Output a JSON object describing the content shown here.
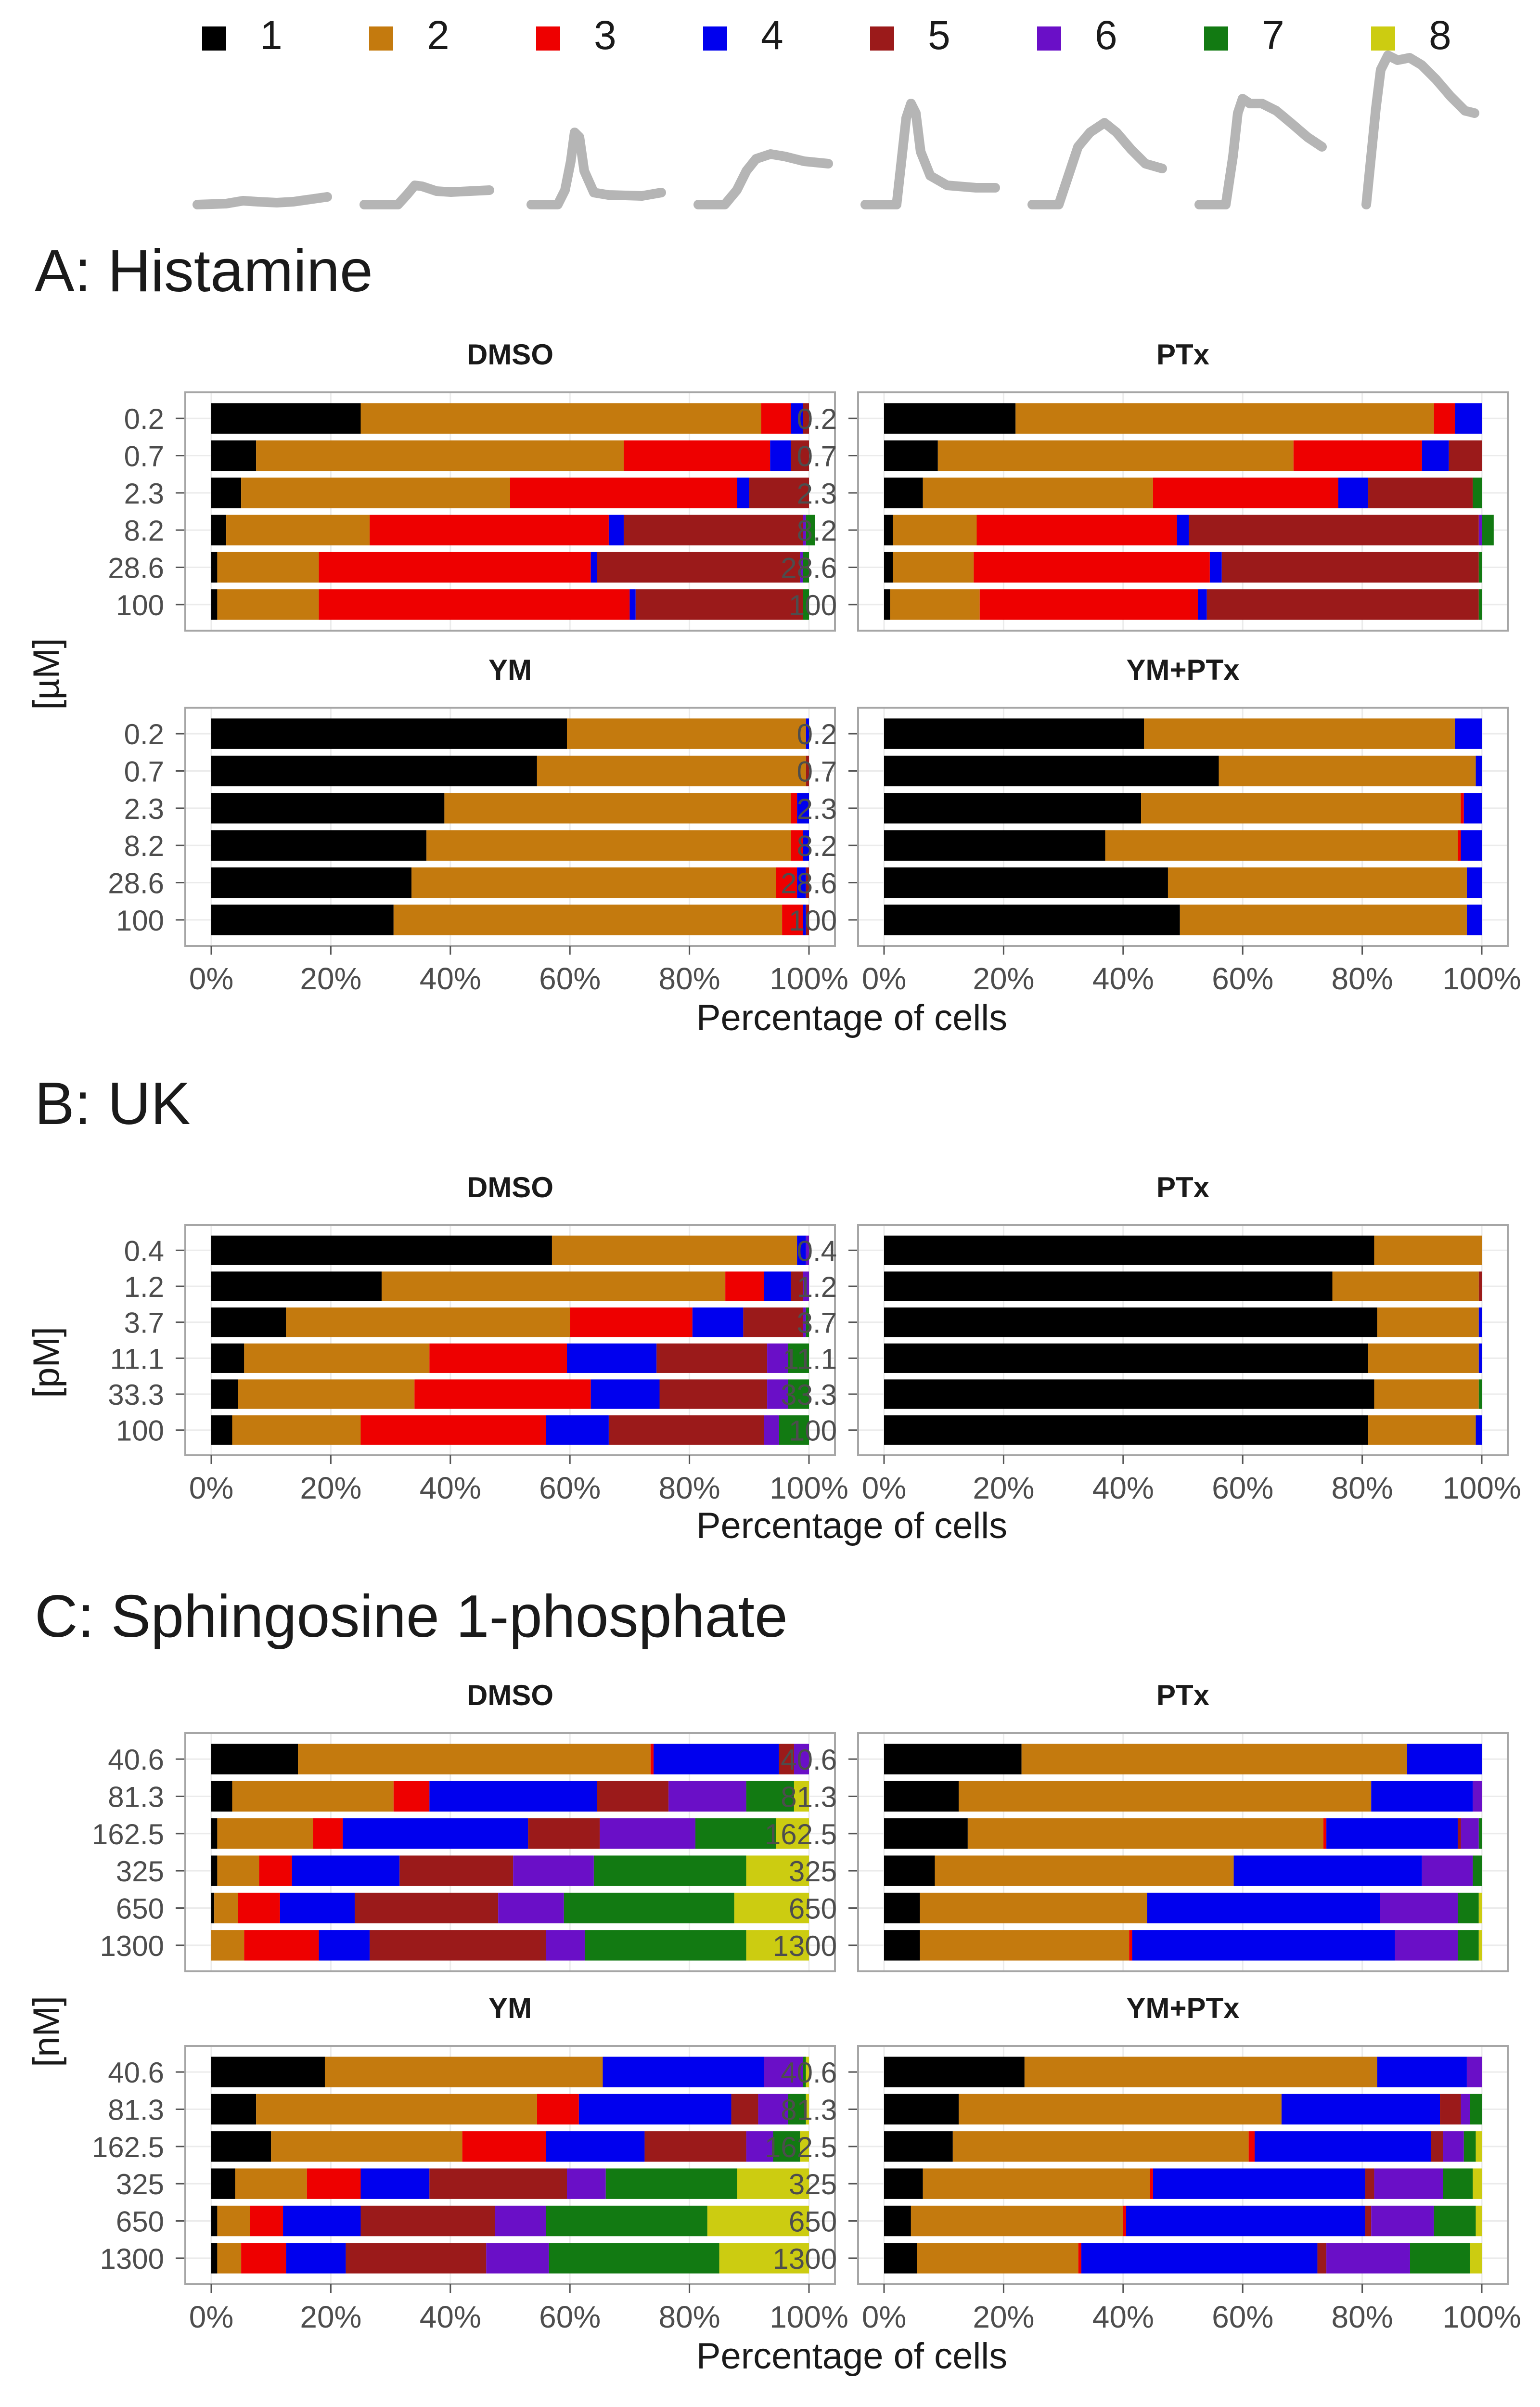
{
  "legend": {
    "items": [
      "1",
      "2",
      "3",
      "4",
      "5",
      "6",
      "7",
      "8"
    ],
    "colors": [
      "#000000",
      "#C47A0E",
      "#EE0000",
      "#0000EE",
      "#9B1A1A",
      "#6A0FC7",
      "#127A12",
      "#CCCC11"
    ],
    "trace_color": "#b5b5b5"
  },
  "panels": [
    {
      "label": "A:  Histamine",
      "ylabel": "[µM]",
      "xlabel": "Percentage of cells"
    },
    {
      "label": "B:  UK",
      "ylabel": "[pM]",
      "xlabel": "Percentage of cells"
    },
    {
      "label": "C:  Sphingosine 1-phosphate",
      "ylabel": "[nM]",
      "xlabel": "Percentage of cells"
    }
  ],
  "x_ticks": [
    "0%",
    "20%",
    "40%",
    "60%",
    "80%",
    "100%"
  ],
  "chart_data": [
    {
      "type": "bar",
      "orientation": "horizontal",
      "stacked": true,
      "panel": "A: Histamine",
      "facet": "DMSO",
      "categories": [
        "0.2",
        "0.7",
        "2.3",
        "8.2",
        "28.6",
        "100"
      ],
      "xlim": [
        0,
        100
      ],
      "series_names": [
        "1",
        "2",
        "3",
        "4",
        "5",
        "6",
        "7",
        "8"
      ],
      "values": [
        [
          25,
          67,
          5,
          2,
          1,
          0,
          0,
          0
        ],
        [
          7.5,
          61.5,
          24.5,
          3.5,
          3,
          0,
          0,
          0
        ],
        [
          5,
          45,
          38,
          2,
          10,
          0,
          0,
          0
        ],
        [
          2.5,
          24,
          40,
          2.5,
          30,
          0.5,
          1.5,
          0
        ],
        [
          1,
          17,
          45.5,
          1,
          34,
          0.5,
          1,
          0
        ],
        [
          1,
          17,
          52,
          1,
          28,
          0,
          1,
          0
        ]
      ]
    },
    {
      "type": "bar",
      "orientation": "horizontal",
      "stacked": true,
      "panel": "A: Histamine",
      "facet": "PTx",
      "categories": [
        "0.2",
        "0.7",
        "2.3",
        "8.2",
        "28.6",
        "100"
      ],
      "xlim": [
        0,
        100
      ],
      "series_names": [
        "1",
        "2",
        "3",
        "4",
        "5",
        "6",
        "7",
        "8"
      ],
      "values": [
        [
          22,
          70,
          3.5,
          4.5,
          0,
          0,
          0,
          0
        ],
        [
          9,
          59.5,
          21.5,
          4.5,
          5.5,
          0,
          0,
          0
        ],
        [
          6.5,
          38.5,
          31,
          5,
          17.5,
          0,
          1.5,
          0
        ],
        [
          1.5,
          14,
          33.5,
          2,
          48.5,
          0.5,
          2,
          0
        ],
        [
          1.5,
          13.5,
          39.5,
          2,
          43,
          0,
          0.5,
          0
        ],
        [
          1,
          15,
          36.5,
          1.5,
          45.5,
          0,
          0.5,
          0
        ]
      ]
    },
    {
      "type": "bar",
      "orientation": "horizontal",
      "stacked": true,
      "panel": "A: Histamine",
      "facet": "YM",
      "categories": [
        "0.2",
        "0.7",
        "2.3",
        "8.2",
        "28.6",
        "100"
      ],
      "xlim": [
        0,
        100
      ],
      "series_names": [
        "1",
        "2",
        "3",
        "4",
        "5",
        "6",
        "7",
        "8"
      ],
      "values": [
        [
          59.5,
          40,
          0,
          0.5,
          0,
          0,
          0,
          0
        ],
        [
          54.5,
          45,
          0,
          0,
          0.5,
          0,
          0,
          0
        ],
        [
          39,
          58,
          1,
          2,
          0,
          0,
          0,
          0
        ],
        [
          36,
          61,
          2,
          1,
          0,
          0,
          0,
          0
        ],
        [
          33.5,
          61,
          3.5,
          1.5,
          0.5,
          0,
          0,
          0
        ],
        [
          30.5,
          65,
          3.5,
          0.5,
          0.5,
          0,
          0,
          0
        ]
      ]
    },
    {
      "type": "bar",
      "orientation": "horizontal",
      "stacked": true,
      "panel": "A: Histamine",
      "facet": "YM+PTx",
      "categories": [
        "0.2",
        "0.7",
        "2.3",
        "8.2",
        "28.6",
        "100"
      ],
      "xlim": [
        0,
        100
      ],
      "series_names": [
        "1",
        "2",
        "3",
        "4",
        "5",
        "6",
        "7",
        "8"
      ],
      "values": [
        [
          43.5,
          52,
          0,
          4.5,
          0,
          0,
          0,
          0
        ],
        [
          56,
          43,
          0,
          1,
          0,
          0,
          0,
          0
        ],
        [
          43,
          53.5,
          0.5,
          3,
          0,
          0,
          0,
          0
        ],
        [
          37,
          59,
          0.5,
          3.5,
          0,
          0,
          0,
          0
        ],
        [
          47.5,
          50,
          0,
          2.5,
          0,
          0,
          0,
          0
        ],
        [
          49.5,
          48,
          0,
          2.5,
          0,
          0,
          0,
          0
        ]
      ]
    },
    {
      "type": "bar",
      "orientation": "horizontal",
      "stacked": true,
      "panel": "B: UK",
      "facet": "DMSO",
      "categories": [
        "0.4",
        "1.2",
        "3.7",
        "11.1",
        "33.3",
        "100"
      ],
      "xlim": [
        0,
        100
      ],
      "series_names": [
        "1",
        "2",
        "3",
        "4",
        "5",
        "6",
        "7",
        "8"
      ],
      "values": [
        [
          57,
          41,
          0,
          1.5,
          0,
          0.5,
          0,
          0
        ],
        [
          28.5,
          57.5,
          6.5,
          4.5,
          2,
          1,
          0,
          0
        ],
        [
          12.5,
          47.5,
          20.5,
          8.5,
          10,
          0.5,
          0.5,
          0
        ],
        [
          5.5,
          31,
          23,
          15,
          18.5,
          3.5,
          3.5,
          0
        ],
        [
          4.5,
          29.5,
          29.5,
          11.5,
          18,
          3.5,
          3.5,
          0
        ],
        [
          3.5,
          21.5,
          31,
          10.5,
          26,
          2.5,
          5,
          0
        ]
      ]
    },
    {
      "type": "bar",
      "orientation": "horizontal",
      "stacked": true,
      "panel": "B: UK",
      "facet": "PTx",
      "categories": [
        "0.4",
        "1.2",
        "3.7",
        "11.1",
        "33.3",
        "100"
      ],
      "xlim": [
        0,
        100
      ],
      "series_names": [
        "1",
        "2",
        "3",
        "4",
        "5",
        "6",
        "7",
        "8"
      ],
      "values": [
        [
          82,
          18,
          0,
          0,
          0,
          0,
          0,
          0
        ],
        [
          75,
          24.5,
          0,
          0,
          0.5,
          0,
          0,
          0
        ],
        [
          82.5,
          17,
          0,
          0.5,
          0,
          0,
          0,
          0
        ],
        [
          81,
          18.5,
          0,
          0.5,
          0,
          0,
          0,
          0
        ],
        [
          82,
          17.5,
          0,
          0,
          0,
          0,
          0.5,
          0
        ],
        [
          81,
          18,
          0,
          1,
          0,
          0,
          0,
          0
        ]
      ]
    },
    {
      "type": "bar",
      "orientation": "horizontal",
      "stacked": true,
      "panel": "C: Sphingosine 1-phosphate",
      "facet": "DMSO",
      "categories": [
        "40.6",
        "81.3",
        "162.5",
        "325",
        "650",
        "1300"
      ],
      "xlim": [
        0,
        100
      ],
      "series_names": [
        "1",
        "2",
        "3",
        "4",
        "5",
        "6",
        "7",
        "8"
      ],
      "values": [
        [
          14.5,
          59,
          0.5,
          21,
          2.5,
          2.5,
          0,
          0
        ],
        [
          3.5,
          27,
          6,
          28,
          12,
          13,
          8,
          2.5
        ],
        [
          1,
          16,
          5,
          31,
          12,
          16,
          13.5,
          5.5
        ],
        [
          1,
          7,
          5.5,
          18,
          19,
          13.5,
          25.5,
          10.5
        ],
        [
          0.5,
          4,
          7,
          12.5,
          24,
          11,
          28.5,
          12.5
        ],
        [
          0,
          5.5,
          12.5,
          8.5,
          29.5,
          6.5,
          27,
          10.5
        ]
      ]
    },
    {
      "type": "bar",
      "orientation": "horizontal",
      "stacked": true,
      "panel": "C: Sphingosine 1-phosphate",
      "facet": "PTx",
      "categories": [
        "40.6",
        "81.3",
        "162.5",
        "325",
        "650",
        "1300"
      ],
      "xlim": [
        0,
        100
      ],
      "series_names": [
        "1",
        "2",
        "3",
        "4",
        "5",
        "6",
        "7",
        "8"
      ],
      "values": [
        [
          23,
          64.5,
          0,
          12.5,
          0,
          0,
          0,
          0
        ],
        [
          12.5,
          69,
          0,
          17,
          0,
          1.5,
          0,
          0
        ],
        [
          14,
          59.5,
          0.5,
          22,
          0.5,
          3,
          0.5,
          0
        ],
        [
          8.5,
          50,
          0,
          31.5,
          0,
          8.5,
          1.5,
          0
        ],
        [
          6,
          38,
          0,
          39,
          0,
          13,
          3.5,
          0.5
        ],
        [
          6,
          35,
          0.5,
          44,
          0,
          10.5,
          3.5,
          0.5
        ]
      ]
    },
    {
      "type": "bar",
      "orientation": "horizontal",
      "stacked": true,
      "panel": "C: Sphingosine 1-phosphate",
      "facet": "YM",
      "categories": [
        "40.6",
        "81.3",
        "162.5",
        "325",
        "650",
        "1300"
      ],
      "xlim": [
        0,
        100
      ],
      "series_names": [
        "1",
        "2",
        "3",
        "4",
        "5",
        "6",
        "7",
        "8"
      ],
      "values": [
        [
          19,
          46.5,
          0,
          27,
          0,
          6.5,
          0.5,
          0.5
        ],
        [
          7.5,
          47,
          7,
          25.5,
          4.5,
          5,
          3,
          0.5
        ],
        [
          10,
          32,
          14,
          16.5,
          17,
          4.5,
          4.5,
          1.5
        ],
        [
          4,
          12,
          9,
          11.5,
          23,
          6.5,
          22,
          12
        ],
        [
          1,
          5.5,
          5.5,
          13,
          22.5,
          8.5,
          27,
          17
        ],
        [
          1,
          4,
          7.5,
          10,
          23.5,
          10.5,
          28.5,
          15
        ]
      ]
    },
    {
      "type": "bar",
      "orientation": "horizontal",
      "stacked": true,
      "panel": "C: Sphingosine 1-phosphate",
      "facet": "YM+PTx",
      "categories": [
        "40.6",
        "81.3",
        "162.5",
        "325",
        "650",
        "1300"
      ],
      "xlim": [
        0,
        100
      ],
      "series_names": [
        "1",
        "2",
        "3",
        "4",
        "5",
        "6",
        "7",
        "8"
      ],
      "values": [
        [
          23.5,
          59,
          0,
          15,
          0,
          2.5,
          0,
          0
        ],
        [
          12.5,
          54,
          0,
          26.5,
          3.5,
          1.5,
          2,
          0
        ],
        [
          11.5,
          49.5,
          1,
          29.5,
          2,
          3.5,
          2,
          1
        ],
        [
          6.5,
          38,
          0.5,
          35.5,
          1.5,
          11.5,
          5,
          1.5
        ],
        [
          4.5,
          35.5,
          0.5,
          40,
          1,
          10.5,
          7,
          1
        ],
        [
          5.5,
          27,
          0.5,
          39.5,
          1.5,
          14,
          10,
          2
        ]
      ]
    }
  ]
}
